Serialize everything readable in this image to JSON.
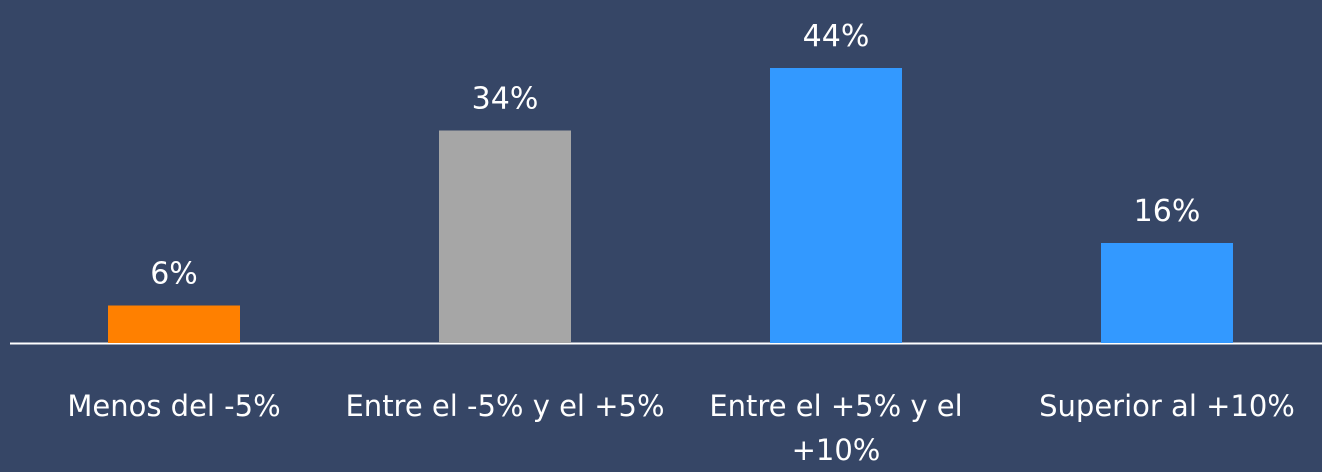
{
  "chart_data": {
    "type": "bar",
    "categories": [
      "Menos del -5%",
      "Entre el -5% y el +5%",
      "Entre el +5% y el +10%",
      "Superior al +10%"
    ],
    "values": [
      6,
      34,
      44,
      16
    ],
    "value_labels": [
      "6%",
      "34%",
      "44%",
      "16%"
    ],
    "colors": [
      "#ff8000",
      "#a6a6a6",
      "#3399ff",
      "#3399ff"
    ]
  }
}
